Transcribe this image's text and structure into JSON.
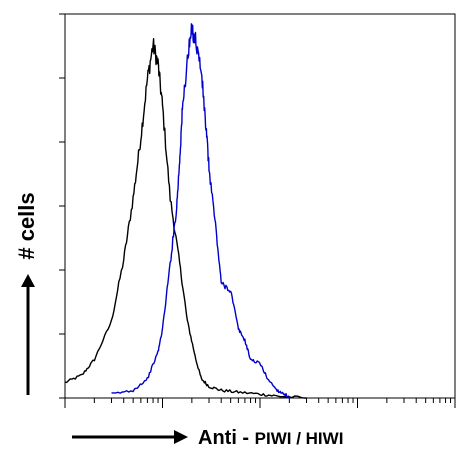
{
  "chart_data": {
    "type": "line",
    "title": "",
    "xlabel": {
      "prefix": "Anti - ",
      "suffix": "PIWI / HIWI"
    },
    "ylabel": "# cells",
    "x_scale": "log",
    "xlim": [
      1,
      10000
    ],
    "ylim": [
      0,
      1
    ],
    "grid": false,
    "legend": "none",
    "series": [
      {
        "color": "#000000",
        "x": [
          1,
          1.5,
          2,
          3,
          4,
          5,
          6,
          7,
          8,
          9,
          10,
          12,
          15,
          18,
          22,
          25,
          30,
          40,
          60,
          100,
          150,
          300
        ],
        "values": [
          0.04,
          0.06,
          0.1,
          0.2,
          0.36,
          0.52,
          0.68,
          0.83,
          0.92,
          0.87,
          0.76,
          0.52,
          0.35,
          0.2,
          0.1,
          0.05,
          0.03,
          0.02,
          0.015,
          0.01,
          0.005,
          0.0
        ]
      },
      {
        "color": "#0000cc",
        "x": [
          3,
          5,
          7,
          9,
          10,
          12,
          14,
          15,
          16,
          18,
          20,
          22,
          25,
          28,
          30,
          35,
          40,
          50,
          60,
          70,
          80,
          100,
          120,
          150,
          180,
          200
        ],
        "values": [
          0.01,
          0.02,
          0.05,
          0.12,
          0.18,
          0.35,
          0.5,
          0.62,
          0.75,
          0.88,
          0.96,
          0.93,
          0.85,
          0.7,
          0.6,
          0.45,
          0.3,
          0.28,
          0.18,
          0.15,
          0.1,
          0.09,
          0.05,
          0.02,
          0.01,
          0.0
        ]
      }
    ]
  }
}
